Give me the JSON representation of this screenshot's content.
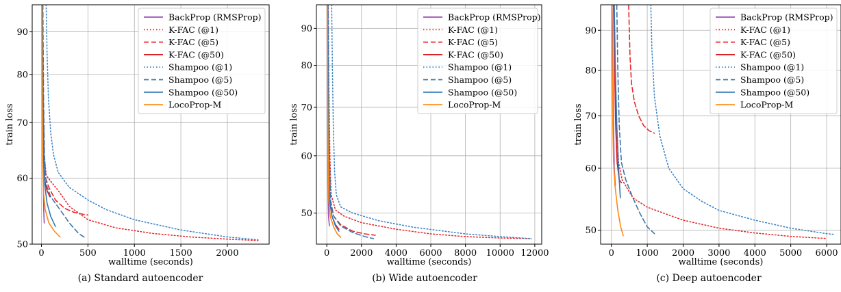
{
  "figure": {
    "captions": [
      "(a) Standard autoencoder",
      "(b) Wide autoencoder",
      "(c) Deep autoencoder"
    ]
  },
  "series_styles": [
    {
      "name": "BackProp (RMSProp)",
      "color": "#9b4fb5",
      "dash": "solid"
    },
    {
      "name": "K-FAC (@1)",
      "color": "#e8262b",
      "dash": "dotted"
    },
    {
      "name": "K-FAC (@5)",
      "color": "#e8262b",
      "dash": "dashed"
    },
    {
      "name": "K-FAC (@50)",
      "color": "#d7191c",
      "dash": "solid"
    },
    {
      "name": "Shampoo (@1)",
      "color": "#3d86c6",
      "dash": "dotted"
    },
    {
      "name": "Shampoo (@5)",
      "color": "#3d76a8",
      "dash": "dashed"
    },
    {
      "name": "Shampoo (@50)",
      "color": "#2f78b7",
      "dash": "solid"
    },
    {
      "name": "LocoProp-M",
      "color": "#ff8a12",
      "dash": "solid"
    }
  ],
  "chart_data": [
    {
      "type": "line",
      "caption": "(a) Standard autoencoder",
      "xlabel": "walltime (seconds)",
      "ylabel": "train loss",
      "xlim": [
        -100,
        2450
      ],
      "ylim": [
        50,
        97
      ],
      "y_scale": "log",
      "xticks": [
        0,
        500,
        1000,
        1500,
        2000
      ],
      "yticks": [
        50,
        60,
        70,
        80,
        90
      ],
      "grid": true,
      "legend_position": "top-right",
      "series": [
        {
          "name": "BackProp (RMSProp)",
          "points": [
            [
              8,
              97
            ],
            [
              12,
              80
            ],
            [
              16,
              66
            ],
            [
              20,
              59
            ],
            [
              24,
              55
            ],
            [
              30,
              53
            ]
          ]
        },
        {
          "name": "K-FAC (@1)",
          "points": [
            [
              12,
              97
            ],
            [
              20,
              75
            ],
            [
              30,
              64
            ],
            [
              50,
              60.5
            ],
            [
              100,
              59.5
            ],
            [
              180,
              58
            ],
            [
              300,
              55.5
            ],
            [
              500,
              53.5
            ],
            [
              800,
              52.3
            ],
            [
              1200,
              51.5
            ],
            [
              1600,
              51
            ],
            [
              2000,
              50.7
            ],
            [
              2330,
              50.5
            ]
          ]
        },
        {
          "name": "K-FAC (@5)",
          "points": [
            [
              10,
              97
            ],
            [
              18,
              75
            ],
            [
              28,
              64
            ],
            [
              45,
              60
            ],
            [
              80,
              58.5
            ],
            [
              150,
              56.5
            ],
            [
              250,
              55.2
            ],
            [
              350,
              54.6
            ],
            [
              450,
              54.3
            ],
            [
              500,
              54.2
            ]
          ]
        },
        {
          "name": "K-FAC (@50)",
          "points": [
            [
              8,
              97
            ],
            [
              14,
              75
            ],
            [
              22,
              64
            ],
            [
              35,
              59.5
            ],
            [
              60,
              58
            ],
            [
              90,
              57
            ]
          ]
        },
        {
          "name": "Shampoo (@1)",
          "points": [
            [
              50,
              97
            ],
            [
              60,
              85
            ],
            [
              75,
              75
            ],
            [
              100,
              68
            ],
            [
              130,
              64
            ],
            [
              180,
              61
            ],
            [
              250,
              59.5
            ],
            [
              300,
              58.5
            ],
            [
              400,
              57.5
            ],
            [
              500,
              56.5
            ],
            [
              700,
              55
            ],
            [
              1000,
              53.5
            ],
            [
              1500,
              52
            ],
            [
              2000,
              51
            ],
            [
              2330,
              50.6
            ]
          ]
        },
        {
          "name": "Shampoo (@5)",
          "points": [
            [
              15,
              97
            ],
            [
              22,
              75
            ],
            [
              32,
              64
            ],
            [
              50,
              59
            ],
            [
              100,
              57
            ],
            [
              200,
              55
            ],
            [
              300,
              53
            ],
            [
              400,
              51.5
            ],
            [
              480,
              50.8
            ]
          ]
        },
        {
          "name": "Shampoo (@50)",
          "points": [
            [
              10,
              97
            ],
            [
              16,
              75
            ],
            [
              24,
              64
            ],
            [
              35,
              59
            ],
            [
              60,
              56
            ],
            [
              100,
              54
            ],
            [
              150,
              52.5
            ]
          ]
        },
        {
          "name": "LocoProp-M",
          "points": [
            [
              4,
              97
            ],
            [
              8,
              75
            ],
            [
              12,
              63
            ],
            [
              20,
              58
            ],
            [
              40,
              55
            ],
            [
              80,
              53
            ],
            [
              140,
              51.8
            ],
            [
              200,
              51
            ]
          ]
        }
      ]
    },
    {
      "type": "line",
      "caption": "(b) Wide autoencoder",
      "xlabel": "walltime (seconds)",
      "ylabel": "train loss",
      "xlim": [
        -600,
        12400
      ],
      "ylim": [
        45.3,
        97
      ],
      "y_scale": "log",
      "xticks": [
        0,
        2000,
        4000,
        6000,
        8000,
        10000,
        12000
      ],
      "yticks": [
        50,
        60,
        70,
        80,
        90
      ],
      "grid": true,
      "legend_position": "top-right",
      "series": [
        {
          "name": "BackProp (RMSProp)",
          "points": [
            [
              20,
              97
            ],
            [
              40,
              75
            ],
            [
              60,
              60
            ],
            [
              80,
              52
            ],
            [
              100,
              49.5
            ],
            [
              150,
              48
            ]
          ]
        },
        {
          "name": "K-FAC (@1)",
          "points": [
            [
              80,
              97
            ],
            [
              120,
              75
            ],
            [
              180,
              60
            ],
            [
              250,
              53
            ],
            [
              500,
              50.5
            ],
            [
              1000,
              49.5
            ],
            [
              2000,
              48.5
            ],
            [
              4000,
              47.5
            ],
            [
              6000,
              46.8
            ],
            [
              8000,
              46.4
            ],
            [
              10000,
              46.2
            ],
            [
              11800,
              46.1
            ]
          ]
        },
        {
          "name": "K-FAC (@5)",
          "points": [
            [
              60,
              97
            ],
            [
              90,
              75
            ],
            [
              140,
              60
            ],
            [
              200,
              52
            ],
            [
              400,
              49.5
            ],
            [
              800,
              48.2
            ],
            [
              1500,
              47.2
            ],
            [
              2200,
              46.8
            ],
            [
              2800,
              46.6
            ]
          ]
        },
        {
          "name": "K-FAC (@50)",
          "points": [
            [
              40,
              97
            ],
            [
              70,
              75
            ],
            [
              110,
              60
            ],
            [
              160,
              52
            ],
            [
              300,
              49.5
            ],
            [
              500,
              48.2
            ],
            [
              700,
              47.5
            ]
          ]
        },
        {
          "name": "Shampoo (@1)",
          "points": [
            [
              280,
              97
            ],
            [
              320,
              80
            ],
            [
              380,
              65
            ],
            [
              450,
              57
            ],
            [
              550,
              53
            ],
            [
              800,
              51
            ],
            [
              1500,
              50
            ],
            [
              3000,
              48.8
            ],
            [
              5000,
              47.8
            ],
            [
              8000,
              46.8
            ],
            [
              10000,
              46.4
            ],
            [
              11800,
              46.1
            ]
          ]
        },
        {
          "name": "Shampoo (@5)",
          "points": [
            [
              70,
              97
            ],
            [
              100,
              75
            ],
            [
              150,
              60
            ],
            [
              220,
              52
            ],
            [
              400,
              49.5
            ],
            [
              800,
              48
            ],
            [
              1500,
              47
            ],
            [
              2200,
              46.4
            ],
            [
              2700,
              46.1
            ]
          ]
        },
        {
          "name": "Shampoo (@50)",
          "points": [
            [
              50,
              97
            ],
            [
              80,
              75
            ],
            [
              120,
              60
            ],
            [
              180,
              52
            ],
            [
              300,
              49.5
            ],
            [
              500,
              48
            ],
            [
              700,
              47.2
            ]
          ]
        },
        {
          "name": "LocoProp-M",
          "points": [
            [
              30,
              97
            ],
            [
              50,
              75
            ],
            [
              80,
              60
            ],
            [
              120,
              52
            ],
            [
              200,
              49.5
            ],
            [
              400,
              47.8
            ],
            [
              600,
              46.8
            ],
            [
              800,
              46.3
            ]
          ]
        }
      ]
    },
    {
      "type": "line",
      "caption": "(c) Deep autoencoder",
      "xlabel": "walltime (seconds)",
      "ylabel": "train loss",
      "xlim": [
        -300,
        6400
      ],
      "ylim": [
        48,
        97
      ],
      "y_scale": "log",
      "xticks": [
        0,
        1000,
        2000,
        3000,
        4000,
        5000,
        6000
      ],
      "yticks": [
        50,
        60,
        70,
        80,
        90
      ],
      "grid": true,
      "legend_position": "top-right",
      "series": [
        {
          "name": "BackProp (RMSProp)",
          "points": [
            [
              20,
              97
            ],
            [
              40,
              80
            ],
            [
              60,
              68
            ],
            [
              80,
              60
            ],
            [
              110,
              57
            ]
          ]
        },
        {
          "name": "K-FAC (@1)",
          "points": [
            [
              80,
              97
            ],
            [
              110,
              80
            ],
            [
              150,
              68
            ],
            [
              200,
              61
            ],
            [
              300,
              58
            ],
            [
              600,
              55
            ],
            [
              1000,
              53.5
            ],
            [
              2000,
              51.5
            ],
            [
              3000,
              50.3
            ],
            [
              4000,
              49.6
            ],
            [
              5000,
              49.1
            ],
            [
              6000,
              48.8
            ]
          ]
        },
        {
          "name": "K-FAC (@5)",
          "points": [
            [
              480,
              97
            ],
            [
              500,
              90
            ],
            [
              520,
              83
            ],
            [
              560,
              77
            ],
            [
              640,
              73
            ],
            [
              760,
              70
            ],
            [
              900,
              68
            ],
            [
              1050,
              67
            ],
            [
              1200,
              66.5
            ]
          ]
        },
        {
          "name": "K-FAC (@50)",
          "points": [
            [
              60,
              97
            ],
            [
              90,
              80
            ],
            [
              120,
              68
            ],
            [
              160,
              61
            ],
            [
              220,
              58
            ],
            [
              280,
              57.5
            ]
          ]
        },
        {
          "name": "Shampoo (@1)",
          "points": [
            [
              1100,
              97
            ],
            [
              1130,
              85
            ],
            [
              1200,
              74
            ],
            [
              1350,
              66
            ],
            [
              1600,
              60
            ],
            [
              2000,
              56.5
            ],
            [
              2500,
              54.5
            ],
            [
              3000,
              53
            ],
            [
              4000,
              51.5
            ],
            [
              5000,
              50.3
            ],
            [
              6000,
              49.5
            ],
            [
              6200,
              49.4
            ]
          ]
        },
        {
          "name": "Shampoo (@5)",
          "points": [
            [
              150,
              97
            ],
            [
              180,
              80
            ],
            [
              220,
              68
            ],
            [
              280,
              61
            ],
            [
              400,
              58
            ],
            [
              600,
              55
            ],
            [
              800,
              52.5
            ],
            [
              1000,
              50.5
            ],
            [
              1200,
              49.5
            ]
          ]
        },
        {
          "name": "Shampoo (@50)",
          "points": [
            [
              80,
              97
            ],
            [
              110,
              80
            ],
            [
              150,
              68
            ],
            [
              190,
              61
            ],
            [
              220,
              58
            ],
            [
              250,
              55
            ]
          ]
        },
        {
          "name": "LocoProp-M",
          "points": [
            [
              15,
              97
            ],
            [
              25,
              80
            ],
            [
              40,
              68
            ],
            [
              60,
              61
            ],
            [
              100,
              57
            ],
            [
              180,
              53
            ],
            [
              260,
              50.5
            ],
            [
              330,
              49.2
            ]
          ]
        }
      ]
    }
  ]
}
